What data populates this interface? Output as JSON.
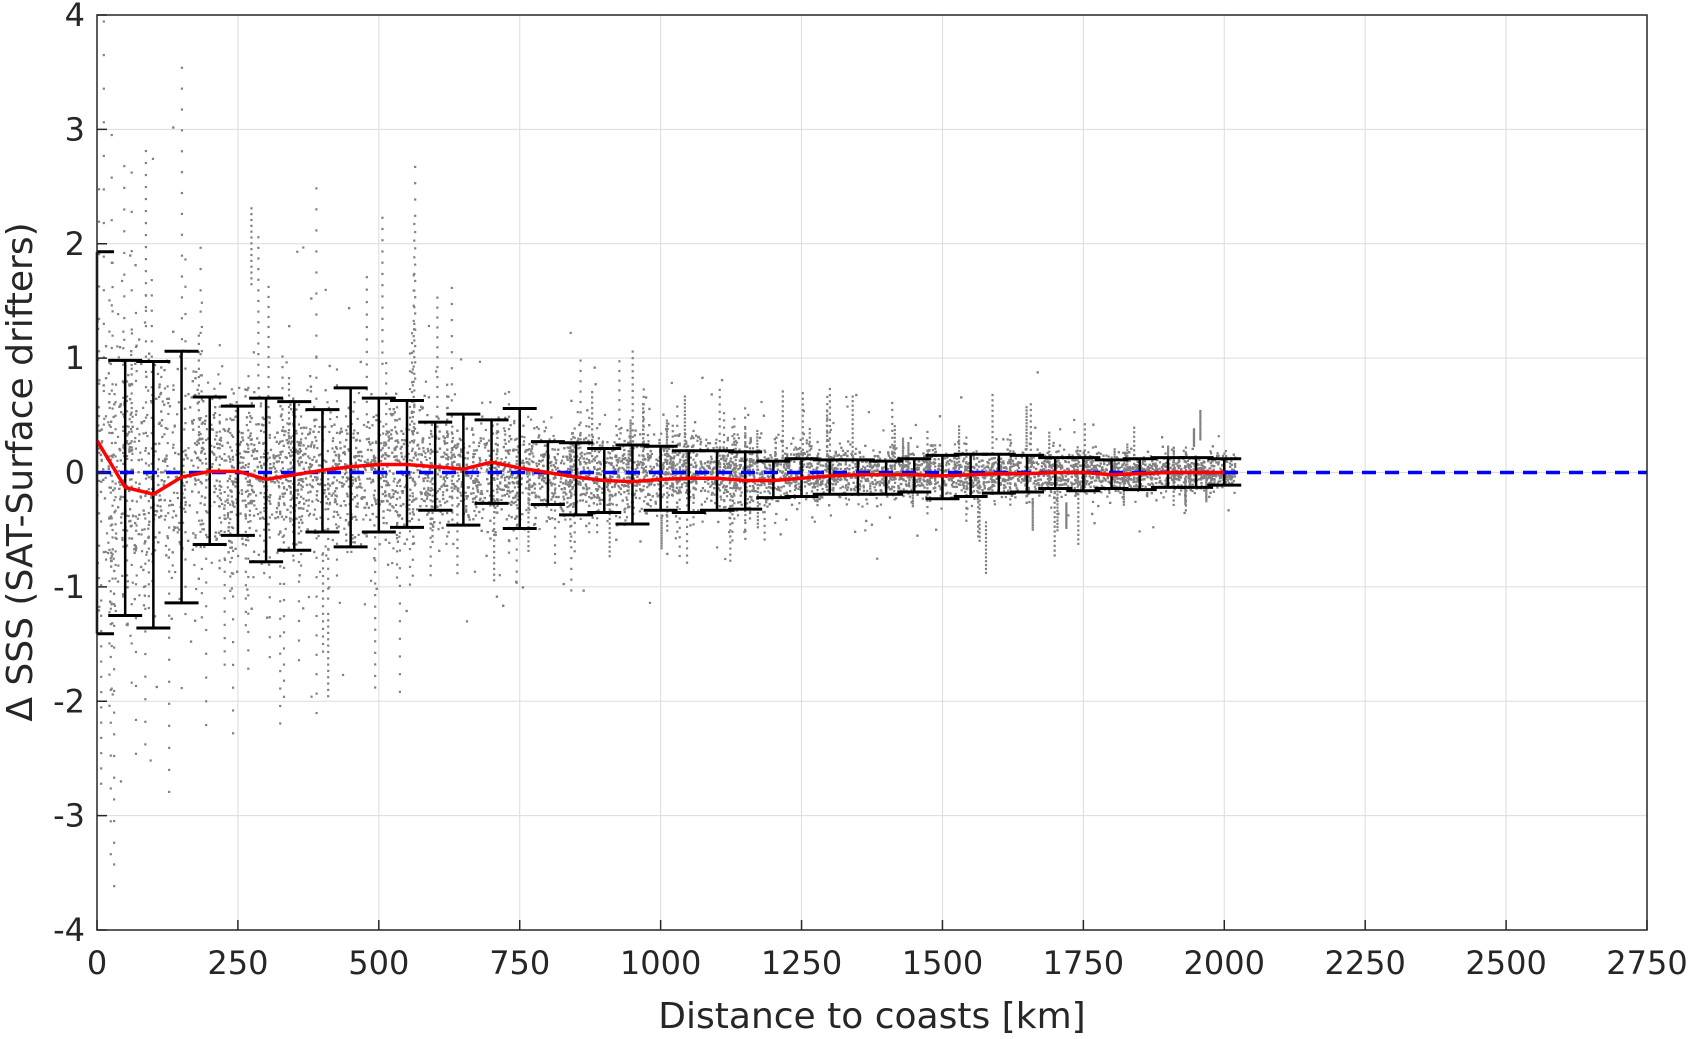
{
  "chart_data": {
    "type": "scatter",
    "xlabel": "Distance to coasts [km]",
    "ylabel": "Δ SSS (SAT-Surface drifters)",
    "xlim": [
      0,
      2750
    ],
    "ylim": [
      -4,
      4
    ],
    "xticks": [
      0,
      250,
      500,
      750,
      1000,
      1250,
      1500,
      1750,
      2000,
      2250,
      2500,
      2750
    ],
    "yticks": [
      -4,
      -3,
      -2,
      -1,
      0,
      1,
      2,
      3,
      4
    ],
    "xtick_labels": [
      "0",
      "250",
      "500",
      "750",
      "1000",
      "1250",
      "1500",
      "1750",
      "2000",
      "2250",
      "2500",
      "2750"
    ],
    "ytick_labels": [
      "-4",
      "-3",
      "-2",
      "-1",
      "0",
      "1",
      "2",
      "3",
      "4"
    ],
    "grid": true,
    "colors": {
      "scatter": "#808080",
      "mean_line": "#ff0000",
      "zero_line": "#0000ff",
      "errorbars": "#000000"
    },
    "reference_line": {
      "y": 0,
      "style": "dashed"
    },
    "scatter_envelope": {
      "x": [
        0,
        100,
        200,
        300,
        400,
        500,
        600,
        700,
        800,
        900,
        1000,
        1100,
        1200,
        1300,
        1400,
        1500,
        1600,
        1700,
        1800,
        1900,
        2000
      ],
      "spread": [
        1.8,
        1.5,
        1.0,
        0.95,
        0.85,
        0.8,
        0.7,
        0.6,
        0.5,
        0.45,
        0.42,
        0.4,
        0.35,
        0.3,
        0.28,
        0.27,
        0.26,
        0.25,
        0.23,
        0.22,
        0.2
      ]
    },
    "mean_line": {
      "x": [
        0,
        50,
        100,
        150,
        200,
        250,
        300,
        350,
        400,
        450,
        500,
        550,
        600,
        650,
        700,
        750,
        800,
        850,
        900,
        950,
        1000,
        1050,
        1100,
        1150,
        1200,
        1250,
        1300,
        1350,
        1400,
        1450,
        1500,
        1550,
        1600,
        1650,
        1700,
        1750,
        1800,
        1850,
        1900,
        1950,
        2000
      ],
      "y": [
        0.28,
        -0.13,
        -0.19,
        -0.04,
        0.01,
        0.01,
        -0.06,
        -0.02,
        0.02,
        0.05,
        0.07,
        0.07,
        0.05,
        0.03,
        0.09,
        0.04,
        0.0,
        -0.04,
        -0.07,
        -0.08,
        -0.06,
        -0.05,
        -0.05,
        -0.07,
        -0.07,
        -0.05,
        -0.03,
        -0.02,
        -0.02,
        -0.02,
        -0.03,
        -0.02,
        -0.01,
        -0.01,
        0.0,
        0.0,
        -0.02,
        -0.01,
        0.0,
        0.0,
        0.0
      ]
    },
    "errorbars": {
      "x": [
        0,
        50,
        100,
        150,
        200,
        250,
        300,
        350,
        400,
        450,
        500,
        550,
        600,
        650,
        700,
        750,
        800,
        850,
        900,
        950,
        1000,
        1050,
        1100,
        1150,
        1200,
        1250,
        1300,
        1350,
        1400,
        1450,
        1500,
        1550,
        1600,
        1650,
        1700,
        1750,
        1800,
        1850,
        1900,
        1950,
        2000
      ],
      "upper": [
        1.93,
        0.98,
        0.97,
        1.06,
        0.66,
        0.58,
        0.65,
        0.62,
        0.55,
        0.74,
        0.65,
        0.63,
        0.44,
        0.51,
        0.46,
        0.56,
        0.27,
        0.26,
        0.21,
        0.24,
        0.23,
        0.19,
        0.19,
        0.18,
        0.1,
        0.12,
        0.11,
        0.11,
        0.1,
        0.12,
        0.15,
        0.16,
        0.16,
        0.15,
        0.13,
        0.13,
        0.11,
        0.12,
        0.13,
        0.13,
        0.12
      ],
      "lower": [
        -1.41,
        -1.25,
        -1.36,
        -1.14,
        -0.63,
        -0.55,
        -0.78,
        -0.68,
        -0.52,
        -0.65,
        -0.52,
        -0.48,
        -0.33,
        -0.46,
        -0.27,
        -0.49,
        -0.28,
        -0.37,
        -0.35,
        -0.45,
        -0.33,
        -0.35,
        -0.33,
        -0.32,
        -0.22,
        -0.21,
        -0.19,
        -0.19,
        -0.19,
        -0.17,
        -0.23,
        -0.21,
        -0.18,
        -0.17,
        -0.14,
        -0.16,
        -0.14,
        -0.15,
        -0.13,
        -0.13,
        -0.11
      ]
    }
  }
}
